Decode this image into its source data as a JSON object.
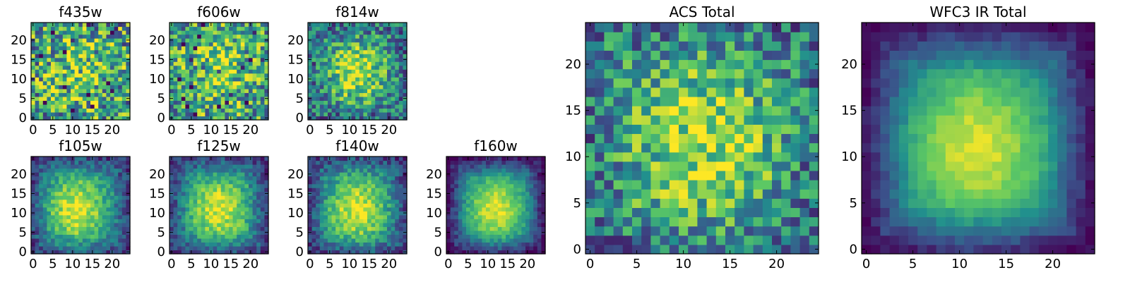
{
  "figure": {
    "background": "#ffffff"
  },
  "colormap": {
    "name": "viridis",
    "stops": [
      "#440154",
      "#3b528b",
      "#21908d",
      "#5dc963",
      "#fde725"
    ]
  },
  "chart_data": [
    {
      "type": "heatmap",
      "title": "f435w",
      "xlabel": "",
      "ylabel": "",
      "grid_size": 25,
      "xlim": [
        0,
        24
      ],
      "ylim": [
        0,
        24
      ],
      "x_ticks": [
        0,
        5,
        10,
        15,
        20
      ],
      "y_ticks": [
        0,
        5,
        10,
        15,
        20
      ],
      "pattern": "noise",
      "center": [
        12,
        12
      ],
      "sigma": 6,
      "peak": 0.2,
      "noise": 0.42,
      "base": 0.55,
      "edge_dark": 0.0,
      "seed": 11
    },
    {
      "type": "heatmap",
      "title": "f606w",
      "xlabel": "",
      "ylabel": "",
      "grid_size": 25,
      "xlim": [
        0,
        24
      ],
      "ylim": [
        0,
        24
      ],
      "x_ticks": [
        0,
        5,
        10,
        15,
        20
      ],
      "y_ticks": [
        0,
        5,
        10,
        15,
        20
      ],
      "pattern": "noise",
      "center": [
        12,
        13
      ],
      "sigma": 6,
      "peak": 0.25,
      "noise": 0.38,
      "base": 0.55,
      "edge_dark": 0.0,
      "seed": 23
    },
    {
      "type": "heatmap",
      "title": "f814w",
      "xlabel": "",
      "ylabel": "",
      "grid_size": 25,
      "xlim": [
        0,
        24
      ],
      "ylim": [
        0,
        24
      ],
      "x_ticks": [
        0,
        5,
        10,
        15,
        20
      ],
      "y_ticks": [
        0,
        5,
        10,
        15,
        20
      ],
      "pattern": "source",
      "center": [
        12,
        12
      ],
      "sigma": 5,
      "peak": 0.45,
      "noise": 0.3,
      "base": 0.45,
      "edge_dark": 0.1,
      "seed": 37
    },
    {
      "type": "heatmap",
      "title": "f105w",
      "xlabel": "",
      "ylabel": "",
      "grid_size": 25,
      "xlim": [
        0,
        24
      ],
      "ylim": [
        0,
        24
      ],
      "x_ticks": [
        0,
        5,
        10,
        15,
        20
      ],
      "y_ticks": [
        0,
        5,
        10,
        15,
        20
      ],
      "pattern": "source",
      "center": [
        11,
        11
      ],
      "sigma": 6,
      "peak": 0.6,
      "noise": 0.15,
      "base": 0.35,
      "edge_dark": 0.2,
      "seed": 41
    },
    {
      "type": "heatmap",
      "title": "f125w",
      "xlabel": "",
      "ylabel": "",
      "grid_size": 25,
      "xlim": [
        0,
        24
      ],
      "ylim": [
        0,
        24
      ],
      "x_ticks": [
        0,
        5,
        10,
        15,
        20
      ],
      "y_ticks": [
        0,
        5,
        10,
        15,
        20
      ],
      "pattern": "source",
      "center": [
        12,
        11
      ],
      "sigma": 6,
      "peak": 0.6,
      "noise": 0.15,
      "base": 0.35,
      "edge_dark": 0.2,
      "seed": 53
    },
    {
      "type": "heatmap",
      "title": "f140w",
      "xlabel": "",
      "ylabel": "",
      "grid_size": 25,
      "xlim": [
        0,
        24
      ],
      "ylim": [
        0,
        24
      ],
      "x_ticks": [
        0,
        5,
        10,
        15,
        20
      ],
      "y_ticks": [
        0,
        5,
        10,
        15,
        20
      ],
      "pattern": "source",
      "center": [
        12,
        11
      ],
      "sigma": 6,
      "peak": 0.6,
      "noise": 0.16,
      "base": 0.35,
      "edge_dark": 0.2,
      "seed": 67
    },
    {
      "type": "heatmap",
      "title": "f160w",
      "xlabel": "",
      "ylabel": "",
      "grid_size": 25,
      "xlim": [
        0,
        24
      ],
      "ylim": [
        0,
        24
      ],
      "x_ticks": [
        0,
        5,
        10,
        15,
        20
      ],
      "y_ticks": [
        0,
        5,
        10,
        15,
        20
      ],
      "pattern": "source",
      "center": [
        12,
        11
      ],
      "sigma": 6,
      "peak": 0.65,
      "noise": 0.1,
      "base": 0.3,
      "edge_dark": 0.3,
      "seed": 79
    },
    {
      "type": "heatmap",
      "title": "ACS Total",
      "xlabel": "",
      "ylabel": "",
      "grid_size": 25,
      "xlim": [
        0,
        24
      ],
      "ylim": [
        0,
        24
      ],
      "x_ticks": [
        0,
        5,
        10,
        15,
        20
      ],
      "y_ticks": [
        0,
        5,
        10,
        15,
        20
      ],
      "pattern": "source",
      "center": [
        12,
        12
      ],
      "sigma": 6,
      "peak": 0.4,
      "noise": 0.3,
      "base": 0.45,
      "edge_dark": 0.1,
      "seed": 97
    },
    {
      "type": "heatmap",
      "title": "WFC3 IR Total",
      "xlabel": "",
      "ylabel": "",
      "grid_size": 25,
      "xlim": [
        0,
        24
      ],
      "ylim": [
        0,
        24
      ],
      "x_ticks": [
        0,
        5,
        10,
        15,
        20
      ],
      "y_ticks": [
        0,
        5,
        10,
        15,
        20
      ],
      "pattern": "source",
      "center": [
        12,
        11
      ],
      "sigma": 6,
      "peak": 0.65,
      "noise": 0.06,
      "base": 0.3,
      "edge_dark": 0.3,
      "seed": 101
    }
  ]
}
